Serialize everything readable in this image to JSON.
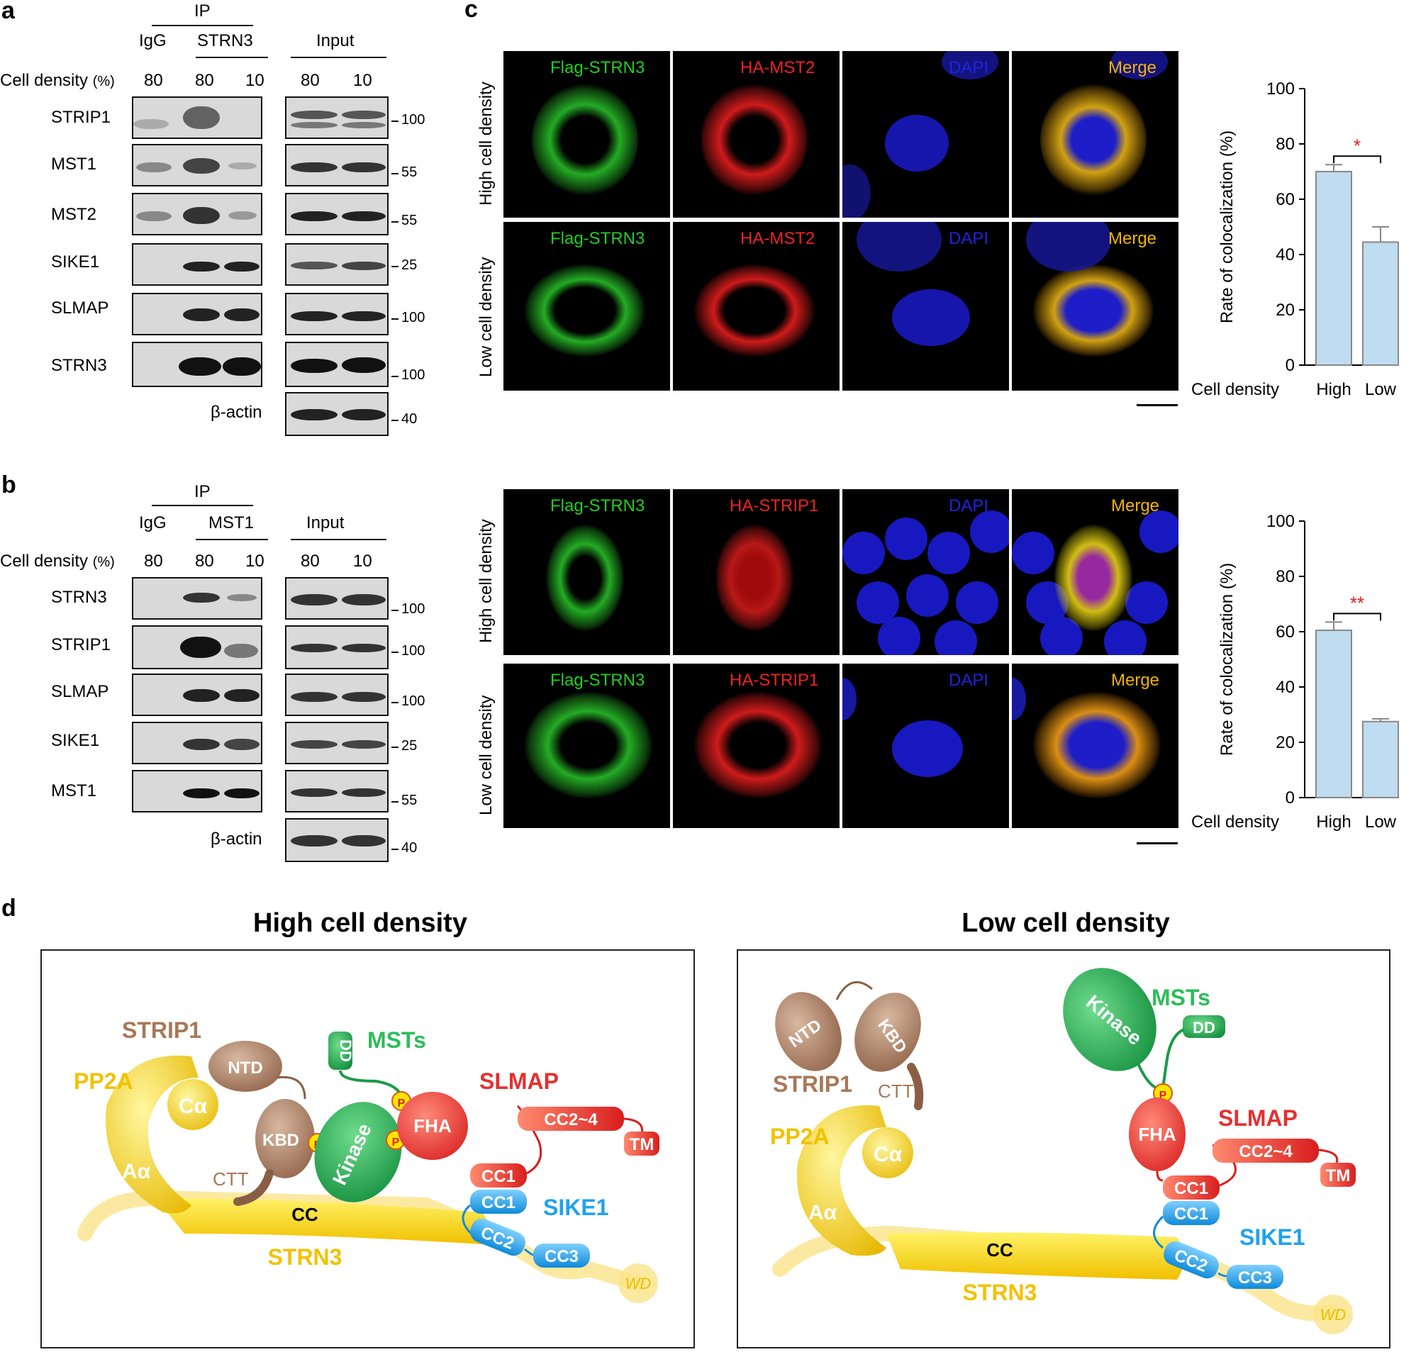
{
  "panel_labels": {
    "a": "a",
    "b": "b",
    "c": "c",
    "d": "d"
  },
  "blot_a": {
    "ip_label": "IP",
    "igg_label": "IgG",
    "ip_target": "STRN3",
    "input_label": "Input",
    "density_label": "Cell density",
    "density_unit": "(%)",
    "lanes": [
      "80",
      "80",
      "10",
      "80",
      "10"
    ],
    "rows": [
      {
        "protein": "STRIP1",
        "mw": "100"
      },
      {
        "protein": "MST1",
        "mw": "55"
      },
      {
        "protein": "MST2",
        "mw": "55"
      },
      {
        "protein": "SIKE1",
        "mw": "25"
      },
      {
        "protein": "SLMAP",
        "mw": "100"
      },
      {
        "protein": "STRN3",
        "mw": "100"
      },
      {
        "protein": "β-actin",
        "mw": "40"
      }
    ]
  },
  "blot_b": {
    "ip_label": "IP",
    "igg_label": "IgG",
    "ip_target": "MST1",
    "input_label": "Input",
    "density_label": "Cell density",
    "density_unit": "(%)",
    "lanes": [
      "80",
      "80",
      "10",
      "80",
      "10"
    ],
    "rows": [
      {
        "protein": "STRN3",
        "mw": "100"
      },
      {
        "protein": "STRIP1",
        "mw": "100"
      },
      {
        "protein": "SLMAP",
        "mw": "100"
      },
      {
        "protein": "SIKE1",
        "mw": "25"
      },
      {
        "protein": "MST1",
        "mw": "55"
      },
      {
        "protein": "β-actin",
        "mw": "40"
      }
    ]
  },
  "imaging_top": {
    "row_labels": [
      "High cell density",
      "Low cell density"
    ],
    "channels": [
      "Flag-STRN3",
      "HA-MST2",
      "DAPI",
      "Merge"
    ],
    "colors": {
      "green": "#22cc22",
      "red": "#ee2222",
      "blue": "#2222dd",
      "merge": "#f2b400"
    }
  },
  "imaging_bottom": {
    "row_labels": [
      "High cell density",
      "Low cell density"
    ],
    "channels": [
      "Flag-STRN3",
      "HA-STRIP1",
      "DAPI",
      "Merge"
    ]
  },
  "chart_data": [
    {
      "type": "bar",
      "categories": [
        "High",
        "Low"
      ],
      "values": [
        70,
        44.5
      ],
      "errors": [
        2.5,
        5.5
      ],
      "ylabel": "Rate of colocalization (%)",
      "xlabel_prefix": "Cell   density",
      "ylim": [
        0,
        100
      ],
      "yticks": [
        0,
        20,
        40,
        60,
        80,
        100
      ],
      "significance": "*",
      "bar_color": "#bfdcf0"
    },
    {
      "type": "bar",
      "categories": [
        "High",
        "Low"
      ],
      "values": [
        60.5,
        27.5
      ],
      "errors": [
        3,
        1
      ],
      "ylabel": "Rate of colocalization (%)",
      "xlabel_prefix": "Cell   density",
      "ylim": [
        0,
        100
      ],
      "yticks": [
        0,
        20,
        40,
        60,
        80,
        100
      ],
      "significance": "**",
      "bar_color": "#bfdcf0"
    }
  ],
  "diagram_high": {
    "title": "High cell density",
    "strip1": "STRIP1",
    "ntd": "NTD",
    "kbd": "KBD",
    "ctt": "CTT",
    "msts": "MSTs",
    "dd": "DD",
    "kinase": "Kinase",
    "p": "P",
    "slmap": "SLMAP",
    "fha": "FHA",
    "cc24": "CC2~4",
    "tm": "TM",
    "cc1": "CC1",
    "sike1": "SIKE1",
    "cc2": "CC2",
    "cc3": "CC3",
    "pp2a": "PP2A",
    "aa": "Aα",
    "ca": "Cα",
    "cc": "CC",
    "strn3": "STRN3",
    "wd": "WD"
  },
  "diagram_low": {
    "title": "Low cell density",
    "strip1": "STRIP1",
    "ntd": "NTD",
    "kbd": "KBD",
    "ctt": "CTT",
    "msts": "MSTs",
    "dd": "DD",
    "kinase": "Kinase",
    "p": "P",
    "slmap": "SLMAP",
    "fha": "FHA",
    "cc24": "CC2~4",
    "tm": "TM",
    "cc1": "CC1",
    "sike1": "SIKE1",
    "cc2": "CC2",
    "cc3": "CC3",
    "pp2a": "PP2A",
    "aa": "Aα",
    "ca": "Cα",
    "cc": "CC",
    "strn3": "STRN3",
    "wd": "WD"
  }
}
